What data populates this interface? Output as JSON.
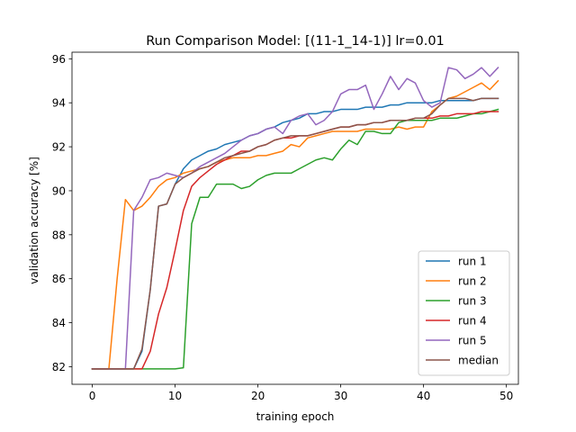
{
  "chart_data": {
    "type": "line",
    "title": "Run Comparison  Model: [(11-1_14-1)]  lr=0.01",
    "xlabel": "training epoch",
    "ylabel": "validation accuracy [%]",
    "xlim": [
      -2.45,
      51.45
    ],
    "ylim": [
      81.2,
      96.3
    ],
    "xticks": [
      0,
      10,
      20,
      30,
      40,
      50
    ],
    "yticks": [
      82,
      84,
      86,
      88,
      90,
      92,
      94,
      96
    ],
    "grid": false,
    "legend_position": "lower-right",
    "series": [
      {
        "name": "run 1",
        "color": "#1f77b4",
        "x": [
          0,
          1,
          2,
          3,
          4,
          5,
          6,
          7,
          8,
          9,
          10,
          11,
          12,
          13,
          14,
          15,
          16,
          17,
          18,
          19,
          20,
          21,
          22,
          23,
          24,
          25,
          26,
          27,
          28,
          29,
          30,
          31,
          32,
          33,
          34,
          35,
          36,
          37,
          38,
          39,
          40,
          41,
          42,
          43,
          44,
          45,
          46,
          47,
          48,
          49
        ],
        "y": [
          81.9,
          81.9,
          81.9,
          81.9,
          81.9,
          81.9,
          82.7,
          85.5,
          89.3,
          89.4,
          90.3,
          91.0,
          91.4,
          91.6,
          91.8,
          91.9,
          92.1,
          92.2,
          92.3,
          92.5,
          92.6,
          92.8,
          92.9,
          93.1,
          93.2,
          93.3,
          93.5,
          93.5,
          93.6,
          93.6,
          93.7,
          93.7,
          93.7,
          93.8,
          93.8,
          93.8,
          93.9,
          93.9,
          94.0,
          94.0,
          94.0,
          94.0,
          94.1,
          94.1,
          94.1,
          94.1,
          94.1,
          94.2,
          94.2,
          94.2
        ]
      },
      {
        "name": "run 2",
        "color": "#ff7f0e",
        "x": [
          0,
          1,
          2,
          3,
          4,
          5,
          6,
          7,
          8,
          9,
          10,
          11,
          12,
          13,
          14,
          15,
          16,
          17,
          18,
          19,
          20,
          21,
          22,
          23,
          24,
          25,
          26,
          27,
          28,
          29,
          30,
          31,
          32,
          33,
          34,
          35,
          36,
          37,
          38,
          39,
          40,
          41,
          42,
          43,
          44,
          45,
          46,
          47,
          48,
          49
        ],
        "y": [
          81.9,
          81.9,
          81.9,
          86.0,
          89.6,
          89.1,
          89.3,
          89.7,
          90.2,
          90.5,
          90.6,
          90.8,
          90.9,
          91.0,
          91.1,
          91.3,
          91.4,
          91.5,
          91.5,
          91.5,
          91.6,
          91.6,
          91.7,
          91.8,
          92.1,
          92.0,
          92.4,
          92.5,
          92.6,
          92.7,
          92.7,
          92.7,
          92.7,
          92.8,
          92.8,
          92.8,
          92.8,
          92.9,
          92.8,
          92.9,
          92.9,
          93.6,
          93.9,
          94.2,
          94.3,
          94.5,
          94.7,
          94.9,
          94.6,
          95.0
        ]
      },
      {
        "name": "run 3",
        "color": "#2ca02c",
        "x": [
          0,
          1,
          2,
          3,
          4,
          5,
          6,
          7,
          8,
          9,
          10,
          11,
          12,
          13,
          14,
          15,
          16,
          17,
          18,
          19,
          20,
          21,
          22,
          23,
          24,
          25,
          26,
          27,
          28,
          29,
          30,
          31,
          32,
          33,
          34,
          35,
          36,
          37,
          38,
          39,
          40,
          41,
          42,
          43,
          44,
          45,
          46,
          47,
          48,
          49
        ],
        "y": [
          81.9,
          81.9,
          81.9,
          81.9,
          81.9,
          81.9,
          81.9,
          81.9,
          81.9,
          81.9,
          81.9,
          81.95,
          88.5,
          89.7,
          89.7,
          90.3,
          90.3,
          90.3,
          90.1,
          90.2,
          90.5,
          90.7,
          90.8,
          90.8,
          90.8,
          91.0,
          91.2,
          91.4,
          91.5,
          91.4,
          91.9,
          92.3,
          92.1,
          92.7,
          92.7,
          92.6,
          92.6,
          93.1,
          93.2,
          93.2,
          93.2,
          93.2,
          93.3,
          93.3,
          93.3,
          93.4,
          93.5,
          93.5,
          93.6,
          93.7
        ]
      },
      {
        "name": "run 4",
        "color": "#d62728",
        "x": [
          0,
          1,
          2,
          3,
          4,
          5,
          6,
          7,
          8,
          9,
          10,
          11,
          12,
          13,
          14,
          15,
          16,
          17,
          18,
          19,
          20,
          21,
          22,
          23,
          24,
          25,
          26,
          27,
          28,
          29,
          30,
          31,
          32,
          33,
          34,
          35,
          36,
          37,
          38,
          39,
          40,
          41,
          42,
          43,
          44,
          45,
          46,
          47,
          48,
          49
        ],
        "y": [
          81.9,
          81.9,
          81.9,
          81.9,
          81.9,
          81.9,
          81.9,
          82.7,
          84.4,
          85.6,
          87.3,
          89.1,
          90.2,
          90.6,
          90.9,
          91.2,
          91.4,
          91.6,
          91.8,
          91.8,
          92.0,
          92.1,
          92.3,
          92.4,
          92.4,
          92.5,
          92.5,
          92.6,
          92.7,
          92.8,
          92.9,
          92.9,
          93.0,
          93.0,
          93.1,
          93.1,
          93.2,
          93.2,
          93.2,
          93.3,
          93.3,
          93.3,
          93.4,
          93.4,
          93.5,
          93.5,
          93.5,
          93.6,
          93.6,
          93.6
        ]
      },
      {
        "name": "run 5",
        "color": "#9467bd",
        "x": [
          0,
          1,
          2,
          3,
          4,
          5,
          6,
          7,
          8,
          9,
          10,
          11,
          12,
          13,
          14,
          15,
          16,
          17,
          18,
          19,
          20,
          21,
          22,
          23,
          24,
          25,
          26,
          27,
          28,
          29,
          30,
          31,
          32,
          33,
          34,
          35,
          36,
          37,
          38,
          39,
          40,
          41,
          42,
          43,
          44,
          45,
          46,
          47,
          48,
          49
        ],
        "y": [
          81.9,
          81.9,
          81.9,
          81.9,
          81.9,
          89.1,
          89.7,
          90.5,
          90.6,
          90.8,
          90.7,
          90.6,
          90.8,
          91.1,
          91.3,
          91.5,
          91.7,
          92.0,
          92.3,
          92.5,
          92.6,
          92.8,
          92.9,
          92.6,
          93.2,
          93.4,
          93.5,
          93.0,
          93.2,
          93.6,
          94.4,
          94.6,
          94.6,
          94.8,
          93.7,
          94.4,
          95.2,
          94.6,
          95.1,
          94.9,
          94.1,
          93.8,
          94.0,
          95.6,
          95.5,
          95.1,
          95.3,
          95.6,
          95.2,
          95.6
        ]
      },
      {
        "name": "median",
        "color": "#8c564b",
        "x": [
          0,
          1,
          2,
          3,
          4,
          5,
          6,
          7,
          8,
          9,
          10,
          11,
          12,
          13,
          14,
          15,
          16,
          17,
          18,
          19,
          20,
          21,
          22,
          23,
          24,
          25,
          26,
          27,
          28,
          29,
          30,
          31,
          32,
          33,
          34,
          35,
          36,
          37,
          38,
          39,
          40,
          41,
          42,
          43,
          44,
          45,
          46,
          47,
          48,
          49
        ],
        "y": [
          81.9,
          81.9,
          81.9,
          81.9,
          81.9,
          81.9,
          82.8,
          85.5,
          89.3,
          89.4,
          90.3,
          90.6,
          90.8,
          91.0,
          91.1,
          91.3,
          91.5,
          91.6,
          91.7,
          91.8,
          92.0,
          92.1,
          92.3,
          92.4,
          92.5,
          92.5,
          92.5,
          92.6,
          92.7,
          92.8,
          92.9,
          92.9,
          93.0,
          93.0,
          93.1,
          93.1,
          93.2,
          93.2,
          93.2,
          93.3,
          93.3,
          93.5,
          93.9,
          94.2,
          94.2,
          94.2,
          94.1,
          94.2,
          94.2,
          94.2
        ]
      }
    ]
  }
}
